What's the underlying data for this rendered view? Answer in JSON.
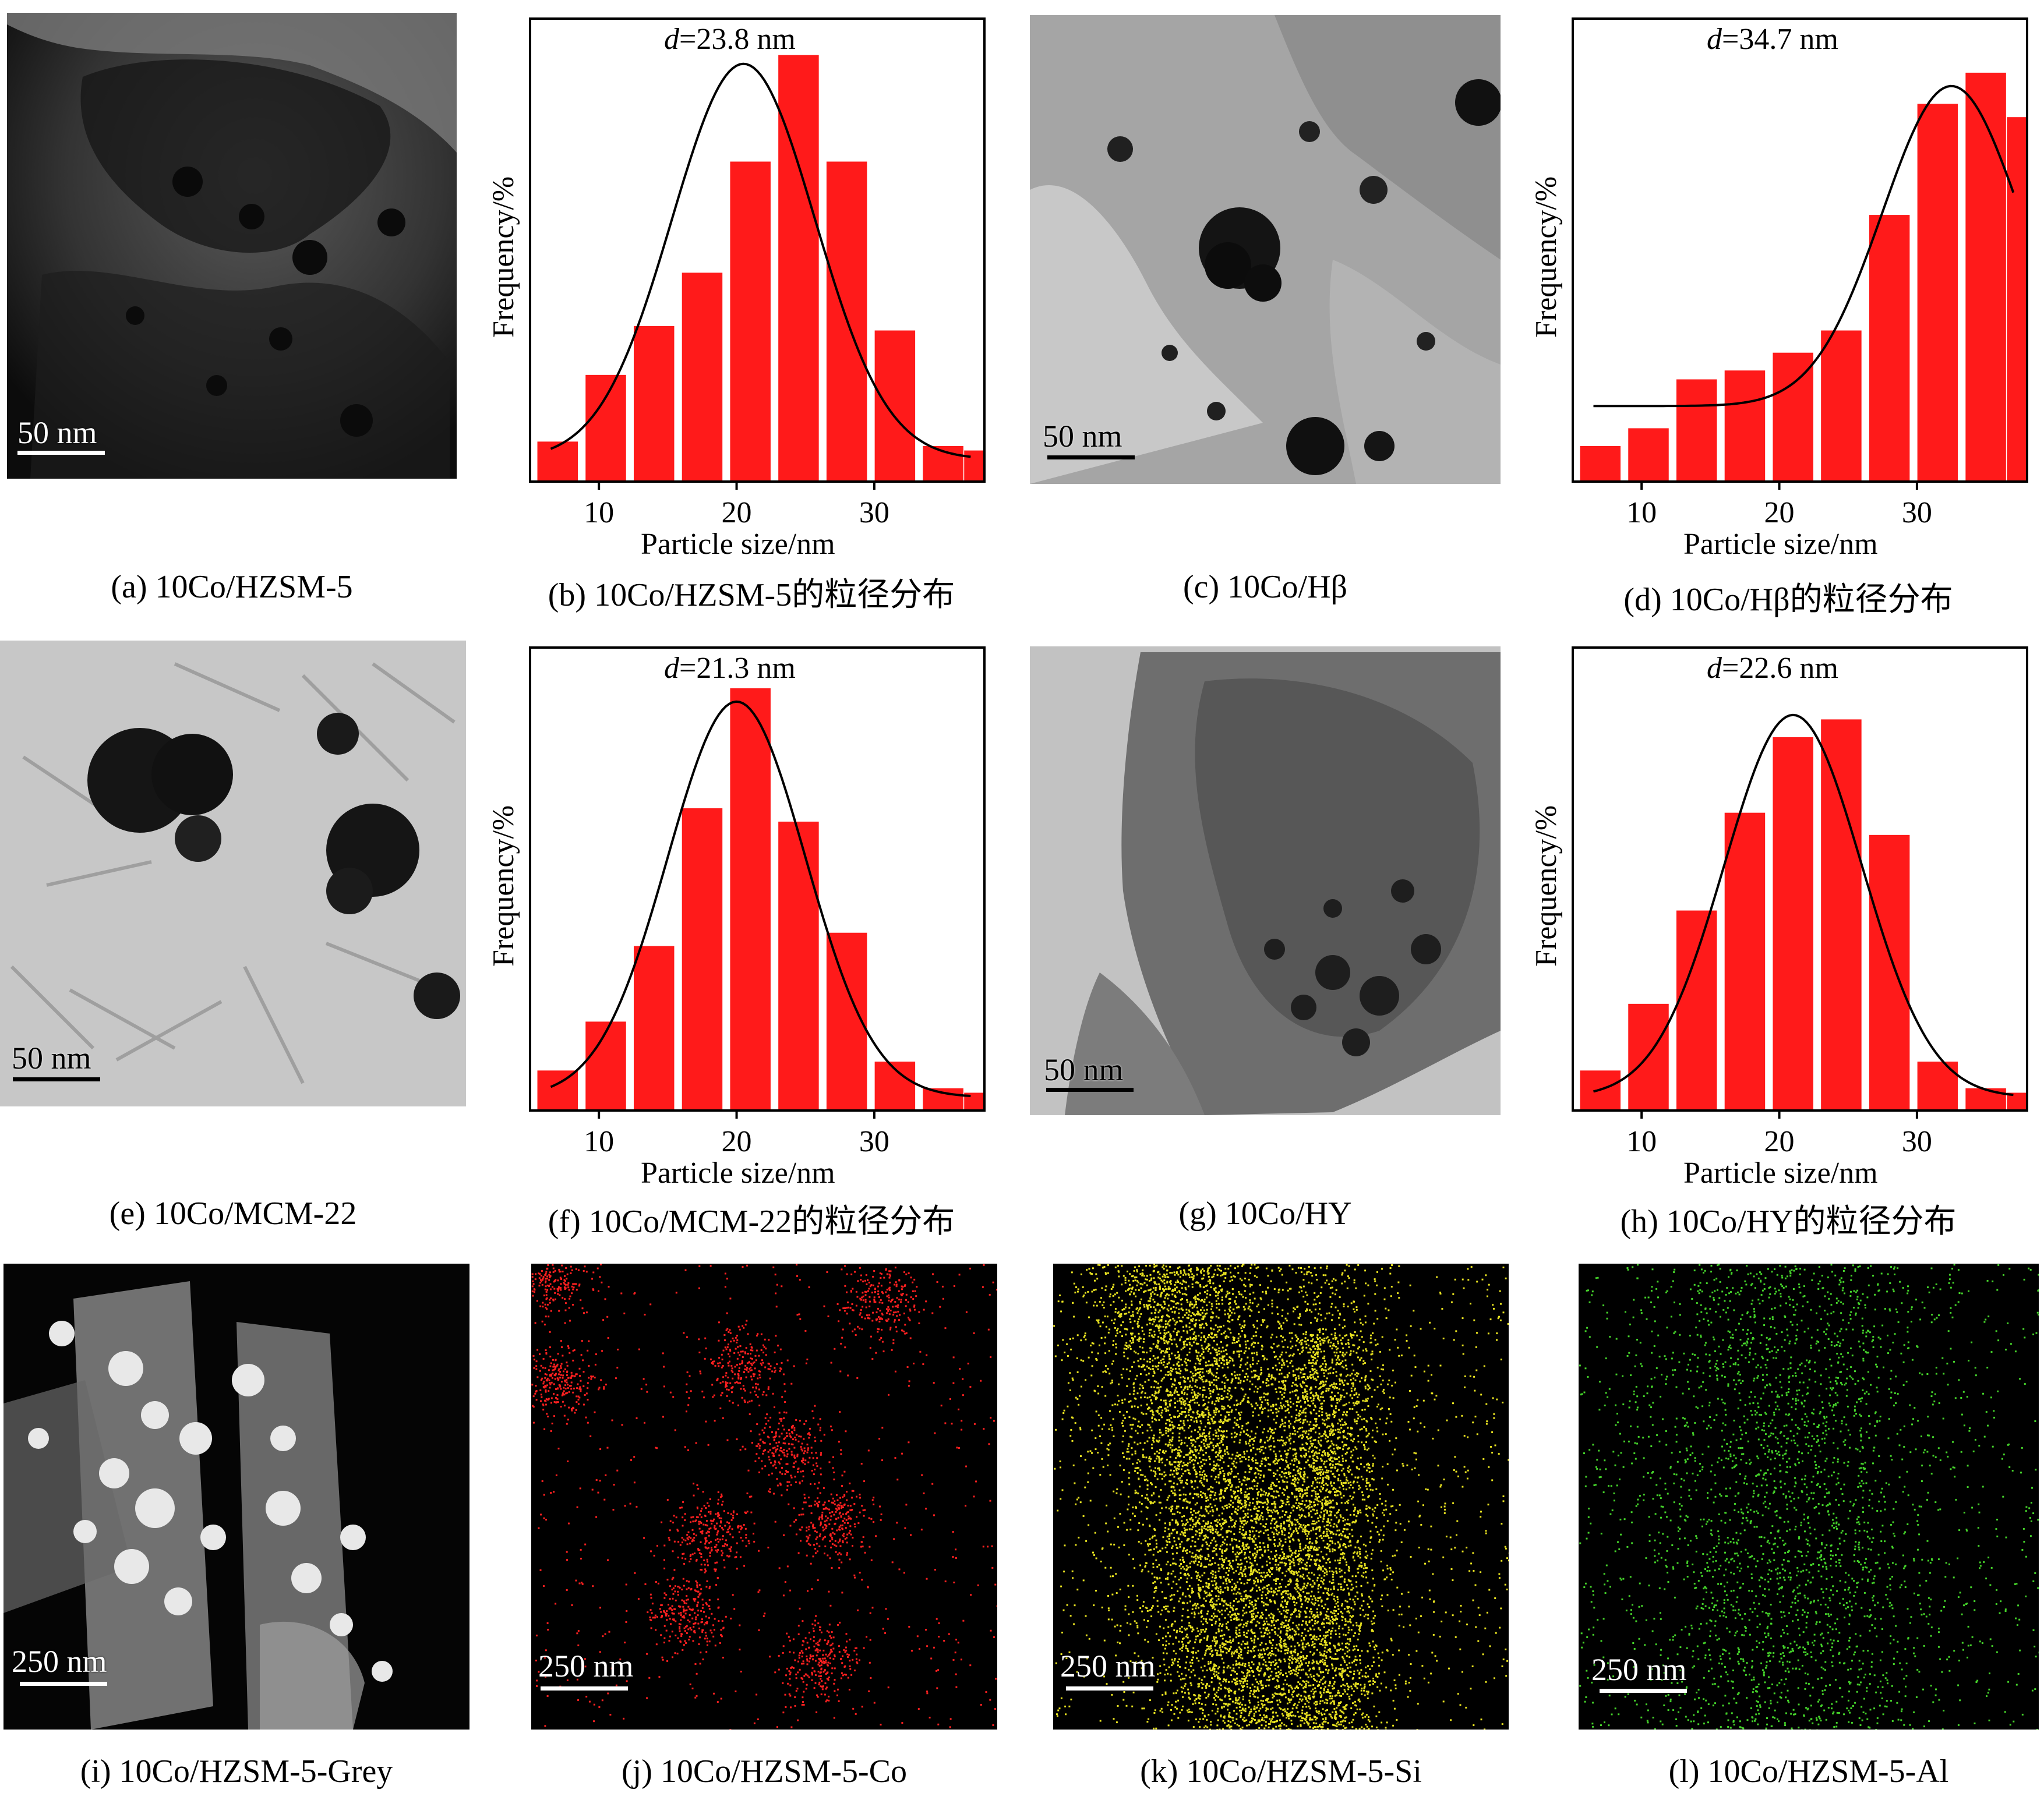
{
  "panels": {
    "a": {
      "caption": "(a) 10Co/HZSM-5",
      "scale": "50 nm"
    },
    "b": {
      "caption": "(b) 10Co/HZSM-5的粒径分布"
    },
    "c": {
      "caption": "(c) 10Co/Hβ",
      "scale": "50 nm"
    },
    "d": {
      "caption": "(d) 10Co/Hβ的粒径分布"
    },
    "e": {
      "caption": "(e) 10Co/MCM-22",
      "scale": "50 nm"
    },
    "f": {
      "caption": "(f) 10Co/MCM-22的粒径分布"
    },
    "g": {
      "caption": "(g) 10Co/HY",
      "scale": "50 nm"
    },
    "h": {
      "caption": "(h) 10Co/HY的粒径分布"
    },
    "i": {
      "caption": "(i) 10Co/HZSM-5-Grey",
      "scale": "250 nm"
    },
    "j": {
      "caption": "(j) 10Co/HZSM-5-Co",
      "scale": "250 nm"
    },
    "k": {
      "caption": "(k) 10Co/HZSM-5-Si",
      "scale": "250 nm"
    },
    "l": {
      "caption": "(l) 10Co/HZSM-5-Al",
      "scale": "250 nm"
    }
  },
  "colors": {
    "bar": "#ff1a1a",
    "fit": "#000000",
    "co_map": "#ff2020",
    "si_map": "#e6e020",
    "al_map": "#44d02a"
  },
  "chart_data": [
    {
      "id": "b",
      "type": "bar",
      "d_prefix": "d",
      "d_value": "=23.8 nm",
      "xlabel": "Particle size/nm",
      "ylabel": "Frequency/%",
      "xlim": [
        5,
        38
      ],
      "ylim": [
        0,
        1
      ],
      "xticks": [
        10,
        20,
        30
      ],
      "x": [
        7,
        10.5,
        14,
        17.5,
        21,
        24.5,
        28,
        31.5,
        35,
        38
      ],
      "values": [
        0.09,
        0.24,
        0.35,
        0.47,
        0.72,
        0.96,
        0.72,
        0.34,
        0.08,
        0.07
      ],
      "fit": {
        "type": "gaussian",
        "mean": 20.5,
        "sigma": 5.2,
        "peak": 0.89,
        "base": 0.05,
        "from": 6.5,
        "to": 37
      }
    },
    {
      "id": "d",
      "type": "bar",
      "d_prefix": "d",
      "d_value": "=34.7 nm",
      "xlabel": "Particle size/nm",
      "ylabel": "Frequency/%",
      "xlim": [
        5,
        38
      ],
      "ylim": [
        0,
        1
      ],
      "xticks": [
        10,
        20,
        30
      ],
      "x": [
        7,
        10.5,
        14,
        17.5,
        21,
        24.5,
        28,
        31.5,
        35,
        38
      ],
      "values": [
        0.08,
        0.12,
        0.23,
        0.25,
        0.29,
        0.34,
        0.6,
        0.85,
        0.92,
        0.82
      ],
      "fit": {
        "type": "gaussian",
        "mean": 32.5,
        "sigma": 5.0,
        "peak": 0.72,
        "base": 0.17,
        "from": 6.5,
        "to": 37
      }
    },
    {
      "id": "f",
      "type": "bar",
      "d_prefix": "d",
      "d_value": "=21.3 nm",
      "xlabel": "Particle size/nm",
      "ylabel": "Frequency/%",
      "xlim": [
        5,
        38
      ],
      "ylim": [
        0,
        1
      ],
      "xticks": [
        10,
        20,
        30
      ],
      "x": [
        7,
        10.5,
        14,
        17.5,
        21,
        24.5,
        28,
        31.5,
        35,
        38
      ],
      "values": [
        0.09,
        0.2,
        0.37,
        0.68,
        0.95,
        0.65,
        0.4,
        0.11,
        0.05,
        0.04
      ],
      "fit": {
        "type": "gaussian",
        "mean": 20,
        "sigma": 5.0,
        "peak": 0.89,
        "base": 0.03,
        "from": 6.5,
        "to": 37
      }
    },
    {
      "id": "h",
      "type": "bar",
      "d_prefix": "d",
      "d_value": "=22.6 nm",
      "xlabel": "Particle size/nm",
      "ylabel": "Frequency/%",
      "xlim": [
        5,
        38
      ],
      "ylim": [
        0,
        1
      ],
      "xticks": [
        10,
        20,
        30
      ],
      "x": [
        7,
        10.5,
        14,
        17.5,
        21,
        24.5,
        28,
        31.5,
        35,
        38
      ],
      "values": [
        0.09,
        0.24,
        0.45,
        0.67,
        0.84,
        0.88,
        0.62,
        0.11,
        0.05,
        0.04
      ],
      "fit": {
        "type": "gaussian",
        "mean": 21,
        "sigma": 5.0,
        "peak": 0.86,
        "base": 0.03,
        "from": 6.5,
        "to": 37
      }
    }
  ]
}
